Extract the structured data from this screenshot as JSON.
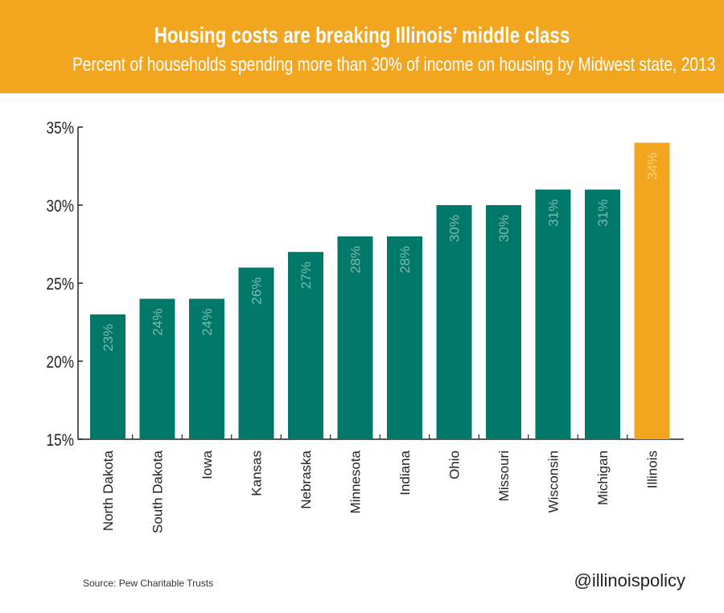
{
  "header": {
    "title": "Housing costs are breaking Illinois’ middle class",
    "subtitle": "Percent of households spending more than 30% of income on housing by Midwest state, 2013"
  },
  "footer": {
    "source": "Source: Pew Charitable Trusts",
    "handle": "@illinoispolicy"
  },
  "colors": {
    "banner": "#F2A51F",
    "bar": "#00796B",
    "highlight": "#F2A51F",
    "bar_label": "#7FB8AD",
    "highlight_label": "#F8D27F",
    "axis": "#222222"
  },
  "chart_data": {
    "type": "bar",
    "categories": [
      "North Dakota",
      "South Dakota",
      "Iowa",
      "Kansas",
      "Nebraska",
      "Minnesota",
      "Indiana",
      "Ohio",
      "Missouri",
      "Wisconsin",
      "Michigan",
      "Illinois"
    ],
    "values": [
      23,
      24,
      24,
      26,
      27,
      28,
      28,
      30,
      30,
      31,
      31,
      34
    ],
    "value_labels": [
      "23%",
      "24%",
      "24%",
      "26%",
      "27%",
      "28%",
      "28%",
      "30%",
      "30%",
      "31%",
      "31%",
      "34%"
    ],
    "highlight_category": "Illinois",
    "ylim": [
      15,
      35
    ],
    "yticks": [
      15,
      20,
      25,
      30,
      35
    ],
    "ytick_labels": [
      "15%",
      "20%",
      "25%",
      "30%",
      "35%"
    ],
    "grid": false,
    "legend": "none"
  }
}
